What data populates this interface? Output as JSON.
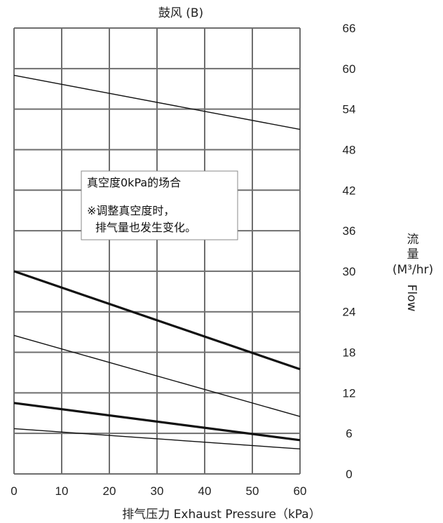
{
  "chart_data": {
    "type": "line",
    "title": "鼓风 (B)",
    "xlabel": "排气压力 Exhaust Pressure（kPa）",
    "ylabel_cn_1": "流",
    "ylabel_cn_2": "量",
    "ylabel_unit": "(M³/hr)",
    "ylabel_en": "Flow",
    "xlim": [
      0,
      60
    ],
    "ylim": [
      0,
      66
    ],
    "x_ticks": [
      0,
      10,
      20,
      30,
      40,
      50,
      60
    ],
    "y_ticks": [
      0,
      6,
      12,
      18,
      24,
      30,
      36,
      42,
      48,
      54,
      60,
      66
    ],
    "grid": true,
    "y_axis_side": "right",
    "annotation": {
      "line1": "真空度0kPa的场合",
      "line2": "※调整真空度时，",
      "line3": "排气量也发生变化。"
    },
    "series": [
      {
        "x": [
          0,
          60
        ],
        "values": [
          59,
          51
        ],
        "weight": "thin"
      },
      {
        "x": [
          0,
          60
        ],
        "values": [
          30,
          15.5
        ],
        "weight": "thick"
      },
      {
        "x": [
          0,
          60
        ],
        "values": [
          20.5,
          8.5
        ],
        "weight": "thin"
      },
      {
        "x": [
          0,
          60
        ],
        "values": [
          10.5,
          5
        ],
        "weight": "thick"
      },
      {
        "x": [
          0,
          60
        ],
        "values": [
          6.7,
          3.7
        ],
        "weight": "thin"
      }
    ]
  }
}
